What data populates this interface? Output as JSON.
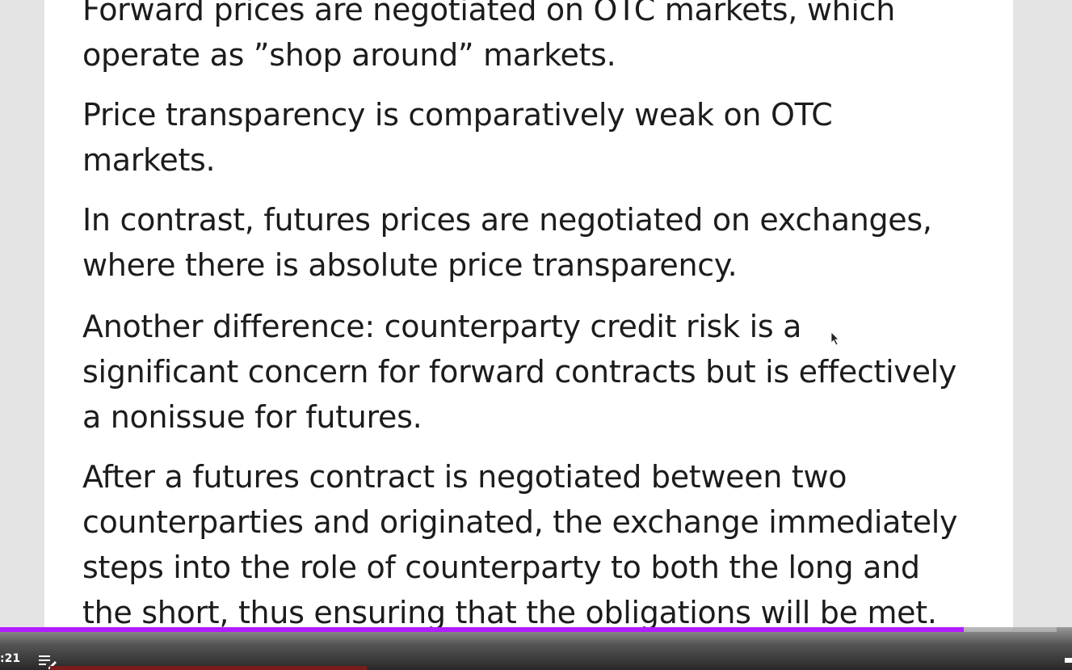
{
  "slide": {
    "paragraphs": [
      {
        "lines": [
          "Forward prices are negotiated on OTC markets, which",
          "operate as ”shop around” markets."
        ]
      },
      {
        "lines": [
          "Price transparency is comparatively weak on OTC",
          "markets."
        ]
      },
      {
        "lines": [
          "In contrast, futures prices are negotiated on exchanges,",
          "where there is absolute price transparency."
        ]
      },
      {
        "lines": [
          "Another difference: counterparty credit risk is a",
          "significant concern for forward contracts but is effectively",
          "a nonissue for futures."
        ]
      },
      {
        "lines": [
          "After a futures contract is negotiated between two",
          "counterparties and originated, the exchange immediately",
          "steps into the role of counterparty to both the long and",
          "the short, thus ensuring that the obligations will be met."
        ]
      }
    ]
  },
  "player": {
    "time_display": ":21",
    "progress_fraction": 0.912,
    "progress_color": "#b21cff",
    "playlist_icon": "playlist-edit-icon"
  }
}
